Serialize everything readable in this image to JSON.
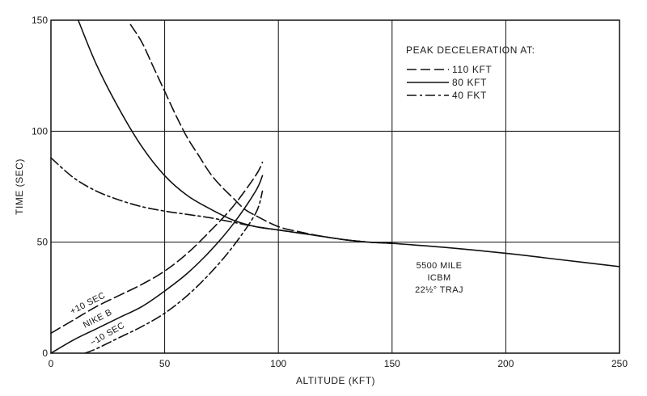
{
  "chart_data": {
    "type": "line",
    "xlabel": "ALTITUDE (KFT)",
    "ylabel": "TIME (SEC)",
    "xlim": [
      0,
      250
    ],
    "ylim": [
      0,
      150
    ],
    "x_ticks": [
      "0",
      "50",
      "100",
      "150",
      "200",
      "250"
    ],
    "y_ticks": [
      "0",
      "50",
      "100",
      "150"
    ],
    "grid": true,
    "legend": {
      "title": "PEAK DECELERATION AT:",
      "placement": "top-right",
      "entries": [
        "110 KFT",
        "80 KFT",
        "40 FKT"
      ]
    },
    "series": [
      {
        "name": "110 KFT",
        "style": "long-dash",
        "x": [
          35,
          40,
          45,
          50,
          55,
          60,
          65,
          70,
          75,
          80,
          85,
          90,
          100,
          110,
          120,
          130,
          140,
          150
        ],
        "y": [
          148,
          140,
          129,
          118,
          107,
          97,
          89,
          81,
          75,
          70,
          65,
          62,
          57,
          54.5,
          52.5,
          51,
          50,
          49.5
        ]
      },
      {
        "name": "80 KFT",
        "style": "solid",
        "x": [
          12,
          20,
          30,
          40,
          50,
          60,
          70,
          80,
          90,
          100,
          110,
          120,
          130,
          140,
          150
        ],
        "y": [
          150,
          130,
          110,
          93,
          80,
          71,
          65,
          60,
          57,
          55.5,
          54,
          52.5,
          51,
          50,
          49.5
        ]
      },
      {
        "name": "40 FKT",
        "style": "dash-dot",
        "x": [
          0,
          10,
          20,
          30,
          40,
          50,
          60,
          70,
          80,
          90,
          100,
          110,
          120,
          130,
          140,
          150
        ],
        "y": [
          88,
          79,
          73,
          69,
          66,
          64,
          62.5,
          61,
          59,
          57,
          55.5,
          54,
          52.5,
          51,
          50,
          49.5
        ]
      },
      {
        "name": "5500 MILE ICBM 22½° TRAJ",
        "style": "solid",
        "x": [
          150,
          175,
          200,
          225,
          250
        ],
        "y": [
          49.5,
          47.5,
          45,
          42,
          39
        ]
      },
      {
        "name": "+10 SEC",
        "style": "long-dash",
        "x": [
          0,
          10,
          20,
          30,
          40,
          50,
          60,
          70,
          80,
          90,
          93
        ],
        "y": [
          9,
          15,
          21,
          26,
          31,
          37,
          45,
          55,
          66,
          80,
          86
        ]
      },
      {
        "name": "NIKE B",
        "style": "solid",
        "x": [
          0,
          10,
          20,
          30,
          40,
          50,
          60,
          70,
          80,
          90,
          93
        ],
        "y": [
          0,
          6,
          11,
          16,
          21,
          28,
          36,
          46,
          58,
          73,
          80
        ]
      },
      {
        "name": "−10 SEC",
        "style": "dash-dot",
        "x": [
          15,
          20,
          30,
          40,
          50,
          60,
          70,
          80,
          90,
          93
        ],
        "y": [
          0,
          2,
          7,
          12,
          18,
          26,
          36,
          48,
          63,
          73
        ]
      }
    ],
    "annotations": {
      "icbm": [
        "5500 MILE",
        "ICBM",
        "22½° TRAJ"
      ],
      "plus10": "+10 SEC",
      "nike": "NIKE B",
      "minus10": "−10 SEC"
    }
  }
}
